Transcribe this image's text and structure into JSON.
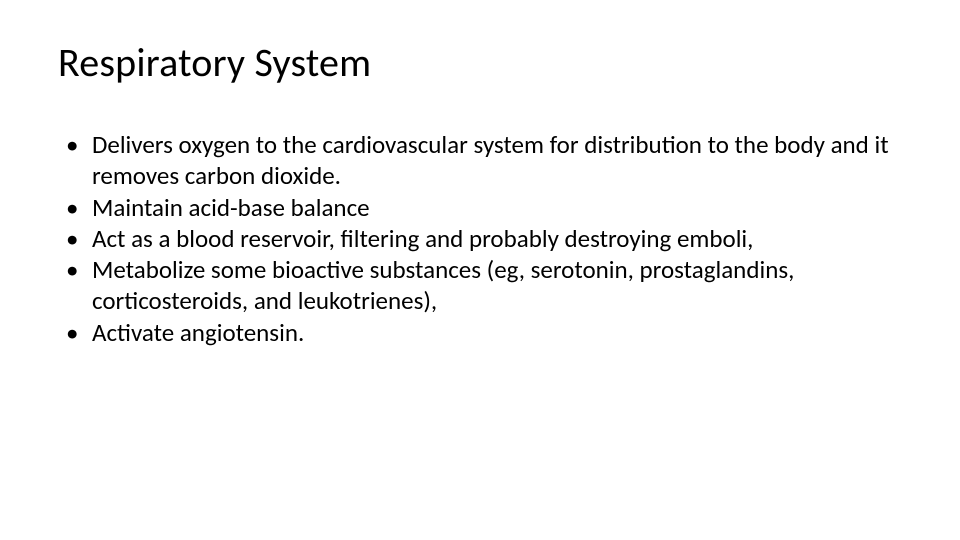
{
  "slide": {
    "title": "Respiratory System",
    "title_fontsize": 40,
    "title_color": "#000000",
    "background_color": "#ffffff",
    "body_fontsize": 25,
    "body_color": "#000000",
    "font_family": "Calibri",
    "bullets": [
      "Delivers oxygen to the cardiovascular system for distribution to the body and it removes carbon dioxide.",
      "Maintain acid-base balance",
      "Act as a blood reservoir, filtering and probably destroying emboli,",
      "Metabolize some bioactive substances (eg, serotonin, prostaglandins, corticosteroids, and leukotrienes),",
      "Activate angiotensin."
    ]
  }
}
